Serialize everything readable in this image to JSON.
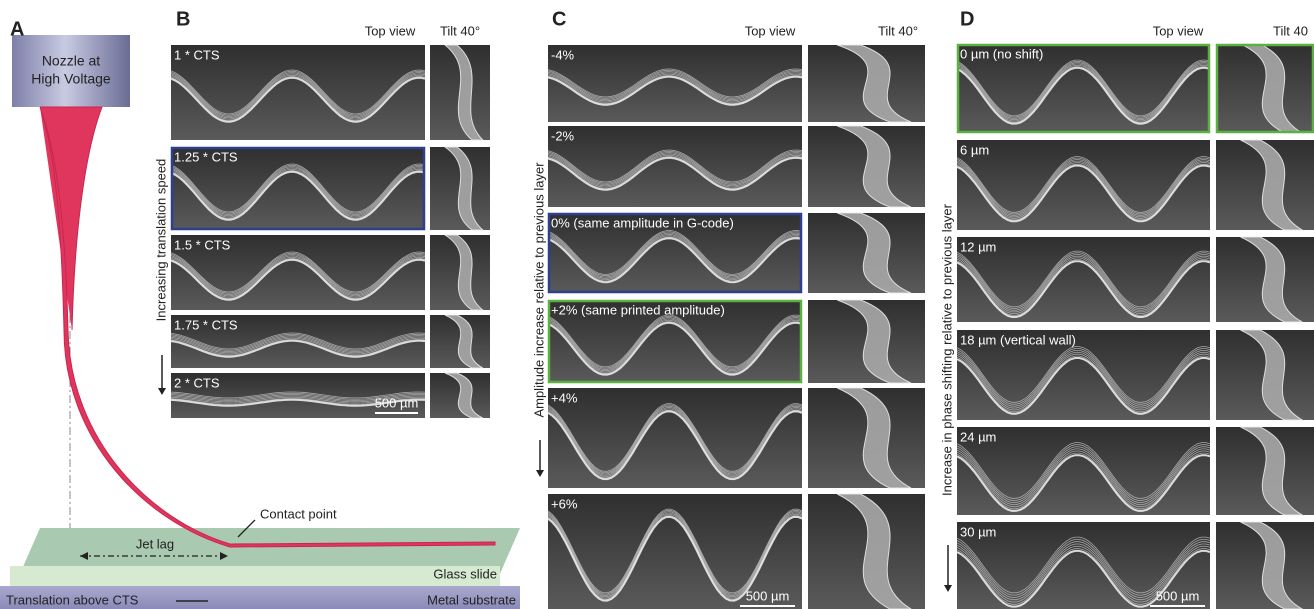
{
  "panel_a": {
    "label": "A",
    "nozzle": [
      "Nozzle at",
      "High Voltage"
    ],
    "contact_point": "Contact point",
    "jet_lag": "Jet lag",
    "glass_slide": "Glass slide",
    "translation": "Translation above CTS",
    "substrate": "Metal substrate"
  },
  "panel_b": {
    "label": "B",
    "top_view": "Top view",
    "tilt": "Tilt 40°",
    "axis_label": "Increasing translation speed",
    "rows": [
      "1 * CTS",
      "1.25 * CTS",
      "1.5 * CTS",
      "1.75 * CTS",
      "2 * CTS"
    ],
    "scale_bar": "500 µm"
  },
  "panel_c": {
    "label": "C",
    "top_view": "Top view",
    "tilt": "Tilt 40°",
    "axis_label": "Amplitude increase relative to previous layer",
    "rows": [
      "-4%",
      "-2%",
      "0% (same amplitude in G-code)",
      "+2% (same printed amplitude)",
      "+4%",
      "+6%"
    ],
    "scale_bar": "500 µm"
  },
  "panel_d": {
    "label": "D",
    "top_view": "Top view",
    "tilt": "Tilt 40",
    "axis_label": "Increase in phase shifting relative to previous layer",
    "rows": [
      "0 µm (no shift)",
      "6 µm",
      "12 µm",
      "18 µm (vertical wall)",
      "24 µm",
      "30 µm"
    ],
    "scale_bar": "500 µm"
  }
}
